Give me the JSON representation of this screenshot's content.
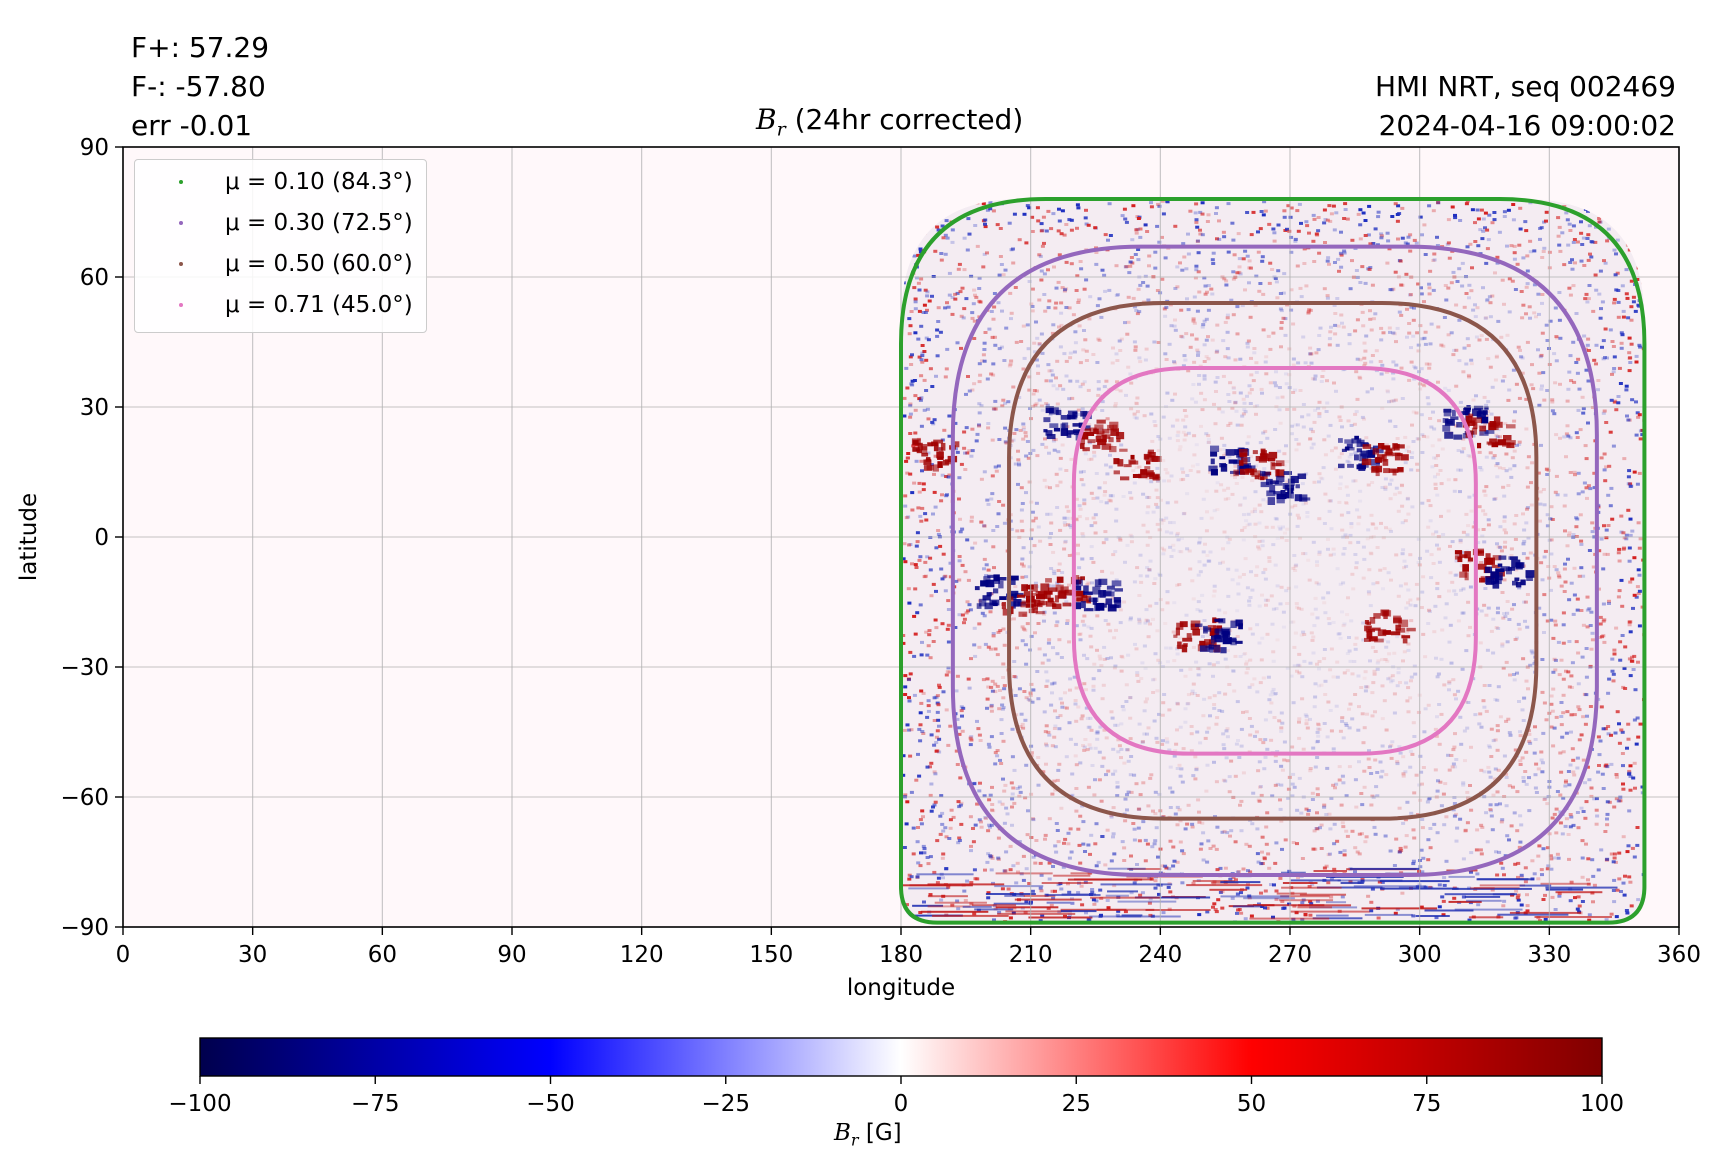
{
  "header": {
    "flux_pos": "F+: 57.29",
    "flux_neg": "F-: -57.80",
    "err": "err -0.01",
    "source": "HMI NRT, seq 002469",
    "timestamp": "2024-04-16 09:00:02",
    "title_sym": "B",
    "title_sub": "r",
    "title_rest": " (24hr corrected)"
  },
  "chart_data": {
    "type": "heatmap",
    "title": "B_r (24hr corrected)",
    "xlabel": "longitude",
    "ylabel": "latitude",
    "xlim": [
      0,
      360
    ],
    "ylim": [
      -90,
      90
    ],
    "xticks": [
      0,
      30,
      60,
      90,
      120,
      150,
      180,
      210,
      240,
      270,
      300,
      330,
      360
    ],
    "yticks": [
      -90,
      -60,
      -30,
      0,
      30,
      60,
      90
    ],
    "ytick_labels": [
      "−90",
      "−60",
      "−30",
      "0",
      "30",
      "60",
      "90"
    ],
    "grid": true,
    "disk_center": {
      "lon": 266.5,
      "lat": -5
    },
    "legend_position": "top-left",
    "series": [
      {
        "name": "μ = 0.10 (84.3°)",
        "mu": 0.1,
        "angle_deg": 84.3,
        "color": "#2ca02c",
        "lon_range": [
          180,
          352
        ],
        "lat_range": [
          -89,
          78
        ]
      },
      {
        "name": "μ = 0.30 (72.5°)",
        "mu": 0.3,
        "angle_deg": 72.5,
        "color": "#9467bd",
        "lon_range": [
          192,
          341
        ],
        "lat_range": [
          -78,
          67
        ]
      },
      {
        "name": "μ = 0.50 (60.0°)",
        "mu": 0.5,
        "angle_deg": 60.0,
        "color": "#8c564b",
        "lon_range": [
          205,
          327
        ],
        "lat_range": [
          -65,
          54
        ]
      },
      {
        "name": "μ = 0.71 (45.0°)",
        "mu": 0.71,
        "angle_deg": 45.0,
        "color": "#e377c2",
        "lon_range": [
          220,
          313
        ],
        "lat_range": [
          -50,
          39
        ]
      }
    ],
    "active_regions": [
      {
        "lon": 218,
        "lat": 27,
        "polarity": "negative"
      },
      {
        "lon": 226,
        "lat": 24,
        "polarity": "positive"
      },
      {
        "lon": 234,
        "lat": 17,
        "polarity": "positive"
      },
      {
        "lon": 256,
        "lat": 18,
        "polarity": "negative"
      },
      {
        "lon": 262,
        "lat": 17,
        "polarity": "positive"
      },
      {
        "lon": 268,
        "lat": 12,
        "polarity": "negative"
      },
      {
        "lon": 285,
        "lat": 20,
        "polarity": "negative"
      },
      {
        "lon": 291,
        "lat": 19,
        "polarity": "positive"
      },
      {
        "lon": 310,
        "lat": 27,
        "polarity": "negative"
      },
      {
        "lon": 315,
        "lat": 25,
        "polarity": "positive"
      },
      {
        "lon": 187,
        "lat": 20,
        "polarity": "positive"
      },
      {
        "lon": 202,
        "lat": -12,
        "polarity": "negative"
      },
      {
        "lon": 208,
        "lat": -14,
        "polarity": "positive"
      },
      {
        "lon": 218,
        "lat": -12,
        "polarity": "positive"
      },
      {
        "lon": 225,
        "lat": -13,
        "polarity": "negative"
      },
      {
        "lon": 248,
        "lat": -22,
        "polarity": "positive"
      },
      {
        "lon": 253,
        "lat": -22,
        "polarity": "negative"
      },
      {
        "lon": 313,
        "lat": -6,
        "polarity": "positive"
      },
      {
        "lon": 320,
        "lat": -7,
        "polarity": "negative"
      },
      {
        "lon": 292,
        "lat": -20,
        "polarity": "positive"
      }
    ],
    "colorbar": {
      "label_sym": "B",
      "label_sub": "r",
      "label_unit": " [G]",
      "range": [
        -100,
        100
      ],
      "ticks": [
        -100,
        -75,
        -50,
        -25,
        0,
        25,
        50,
        75,
        100
      ],
      "tick_labels": [
        "−100",
        "−75",
        "−50",
        "−25",
        "0",
        "25",
        "50",
        "75",
        "100"
      ],
      "colormap": "seismic",
      "colors": [
        "#00004d",
        "#0000ff",
        "#ffffff",
        "#ff0000",
        "#800000"
      ]
    }
  }
}
